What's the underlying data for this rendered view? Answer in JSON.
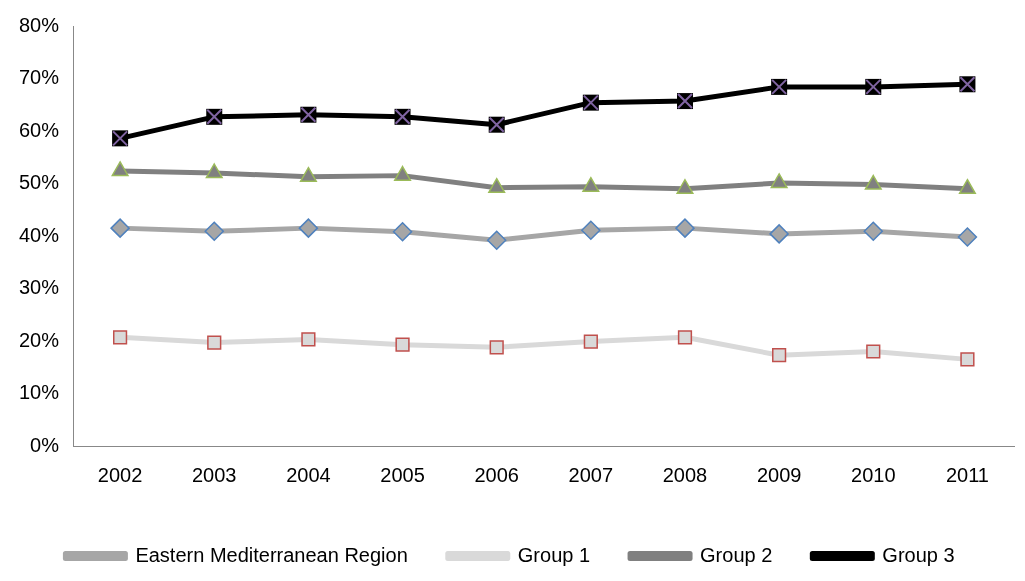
{
  "chart_data": {
    "type": "line",
    "categories": [
      "2002",
      "2003",
      "2004",
      "2005",
      "2006",
      "2007",
      "2008",
      "2009",
      "2010",
      "2011"
    ],
    "ylim": [
      0,
      80
    ],
    "yticks": [
      {
        "value": 0,
        "label": "0%"
      },
      {
        "value": 10,
        "label": "10%"
      },
      {
        "value": 20,
        "label": "20%"
      },
      {
        "value": 30,
        "label": "30%"
      },
      {
        "value": 40,
        "label": "40%"
      },
      {
        "value": 50,
        "label": "50%"
      },
      {
        "value": 60,
        "label": "60%"
      },
      {
        "value": 70,
        "label": "70%"
      },
      {
        "value": 80,
        "label": "80%"
      }
    ],
    "grid": false,
    "legend": "bottom",
    "line_style": "solid",
    "series": [
      {
        "name": "Eastern Mediterranean Region",
        "color": "#a6a6a6",
        "marker": "diamond",
        "values": [
          41.5,
          40.9,
          41.5,
          40.8,
          39.2,
          41.1,
          41.5,
          40.4,
          40.9,
          39.8
        ]
      },
      {
        "name": "Group 1",
        "color": "#d9d9d9",
        "marker": "square",
        "values": [
          20.7,
          19.7,
          20.3,
          19.3,
          18.8,
          19.9,
          20.7,
          17.3,
          18.0,
          16.5
        ]
      },
      {
        "name": "Group 2",
        "color": "#808080",
        "marker": "triangle",
        "values": [
          52.4,
          52.0,
          51.3,
          51.5,
          49.2,
          49.4,
          49.0,
          50.1,
          49.8,
          49.0
        ]
      },
      {
        "name": "Group 3",
        "color": "#000000",
        "marker": "square",
        "values": [
          58.6,
          62.7,
          63.1,
          62.7,
          61.2,
          65.4,
          65.7,
          68.4,
          68.4,
          68.9
        ]
      }
    ]
  }
}
